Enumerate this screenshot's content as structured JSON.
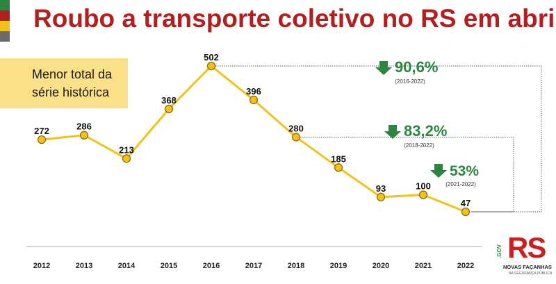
{
  "title": "Roubo a transporte coletivo no RS em abril",
  "note": {
    "line1": "Menor total da",
    "line2": "série histórica"
  },
  "colors": {
    "title": "#b21f1f",
    "line": "#f2c21b",
    "marker_fill": "#f2c21b",
    "marker_stroke": "#8a6d0b",
    "decrease": "#2e8540",
    "note_bg": "#fbe08a",
    "stripes": [
      "#2e8540",
      "#b21f1f",
      "#f2c21b",
      "#6b6b6b"
    ]
  },
  "chart_data": {
    "type": "line",
    "title": "Roubo a transporte coletivo no RS em abril",
    "xlabel": "",
    "ylabel": "",
    "x": [
      "2012",
      "2013",
      "2014",
      "2015",
      "2016",
      "2017",
      "2018",
      "2019",
      "2020",
      "2021",
      "2022"
    ],
    "series": [
      {
        "values": [
          272,
          286,
          213,
          368,
          502,
          396,
          280,
          185,
          93,
          100,
          47
        ]
      }
    ],
    "grid": false,
    "annotations": [
      {
        "text": "90,6%",
        "range": "(2016-2022)",
        "from": "2016",
        "to": "2022",
        "direction": "down"
      },
      {
        "text": "83,2%",
        "range": "(2018-2022)",
        "from": "2018",
        "to": "2022",
        "direction": "down"
      },
      {
        "text": "53%",
        "range": "(2021-2022)",
        "from": "2021",
        "to": "2022",
        "direction": "down"
      }
    ]
  },
  "logo": {
    "text": "RS",
    "gov": ".GOV",
    "line1": "NOVAS FAÇANHAS",
    "line2": "NA SEGURANÇA PÚBLICA"
  }
}
